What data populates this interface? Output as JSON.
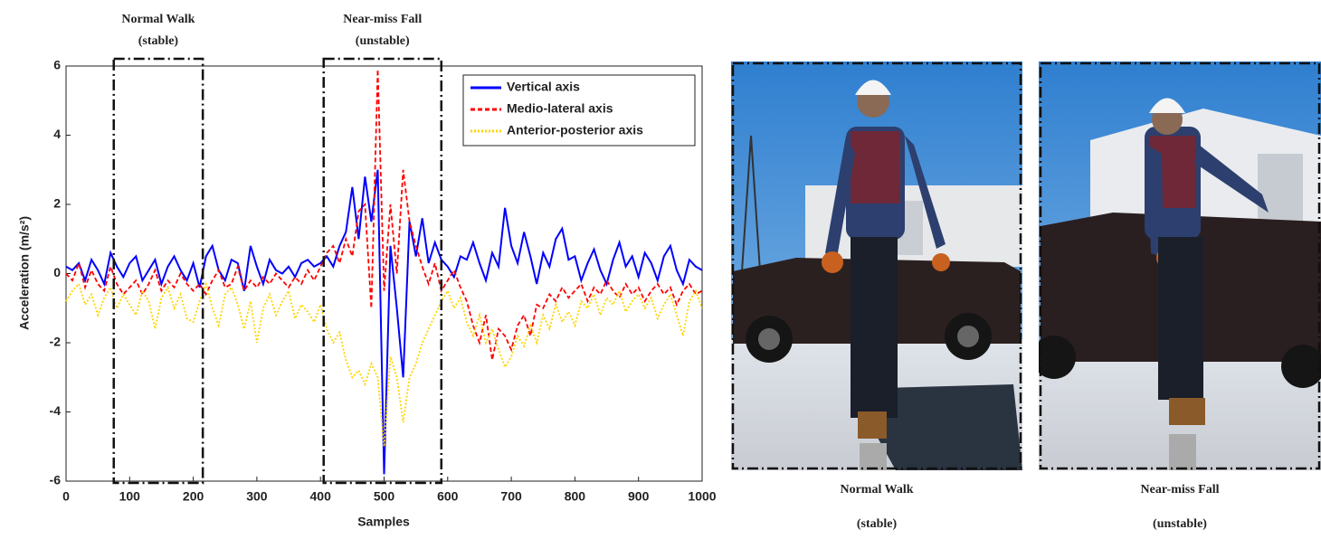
{
  "chart_data": {
    "type": "line",
    "xlabel": "Samples",
    "ylabel": "Acceleration (m/s²)",
    "x": [
      0,
      10,
      20,
      30,
      40,
      50,
      60,
      70,
      80,
      90,
      100,
      110,
      120,
      130,
      140,
      150,
      160,
      170,
      180,
      190,
      200,
      210,
      220,
      230,
      240,
      250,
      260,
      270,
      280,
      290,
      300,
      310,
      320,
      330,
      340,
      350,
      360,
      370,
      380,
      390,
      400,
      410,
      420,
      430,
      440,
      450,
      460,
      470,
      480,
      490,
      500,
      510,
      520,
      530,
      540,
      550,
      560,
      570,
      580,
      590,
      600,
      610,
      620,
      630,
      640,
      650,
      660,
      670,
      680,
      690,
      700,
      710,
      720,
      730,
      740,
      750,
      760,
      770,
      780,
      790,
      800,
      810,
      820,
      830,
      840,
      850,
      860,
      870,
      880,
      890,
      900,
      910,
      920,
      930,
      940,
      950,
      960,
      970,
      980,
      990,
      1000
    ],
    "series": [
      {
        "name": "Vertical axis",
        "color": "#0000ff",
        "dash": "solid",
        "values": [
          0.2,
          0.1,
          0.3,
          -0.2,
          0.4,
          0.1,
          -0.3,
          0.6,
          0.2,
          -0.1,
          0.3,
          0.5,
          -0.2,
          0.1,
          0.4,
          -0.3,
          0.2,
          0.5,
          0.1,
          -0.2,
          0.3,
          -0.4,
          0.5,
          0.8,
          0.1,
          -0.2,
          0.4,
          0.3,
          -0.5,
          0.8,
          0.2,
          -0.3,
          0.4,
          0.1,
          0.0,
          0.2,
          -0.1,
          0.3,
          0.4,
          0.2,
          0.3,
          0.5,
          0.2,
          0.8,
          1.2,
          2.5,
          1.0,
          2.8,
          1.5,
          3.0,
          -5.8,
          0.8,
          -1.0,
          -3.0,
          1.5,
          0.5,
          1.6,
          0.3,
          0.9,
          0.4,
          0.2,
          -0.1,
          0.5,
          0.4,
          0.9,
          0.3,
          -0.2,
          0.6,
          0.2,
          1.9,
          0.8,
          0.3,
          1.2,
          0.5,
          -0.3,
          0.6,
          0.2,
          1.0,
          1.3,
          0.4,
          0.5,
          -0.2,
          0.3,
          0.7,
          0.1,
          -0.3,
          0.4,
          0.9,
          0.2,
          0.5,
          -0.1,
          0.6,
          0.3,
          -0.2,
          0.5,
          0.8,
          0.1,
          -0.3,
          0.4,
          0.2,
          0.1
        ]
      },
      {
        "name": "Medio-lateral axis",
        "color": "#ff0000",
        "dash": "dashed",
        "values": [
          0.0,
          -0.2,
          0.3,
          -0.4,
          0.1,
          -0.3,
          -0.5,
          0.2,
          -0.3,
          -0.6,
          -0.4,
          -0.2,
          -0.6,
          -0.3,
          0.1,
          -0.5,
          -0.2,
          -0.4,
          0.0,
          -0.3,
          -0.5,
          -0.3,
          -0.6,
          -0.2,
          0.1,
          -0.4,
          -0.3,
          0.2,
          -0.5,
          -0.2,
          -0.4,
          -0.1,
          -0.3,
          0.0,
          -0.2,
          -0.4,
          -0.1,
          -0.3,
          0.1,
          -0.2,
          0.2,
          0.6,
          0.8,
          0.3,
          1.0,
          0.5,
          1.8,
          2.0,
          -1.0,
          5.9,
          -0.5,
          2.0,
          0.0,
          3.0,
          1.5,
          0.8,
          0.2,
          -0.3,
          0.3,
          -0.5,
          -0.2,
          0.1,
          -0.4,
          -0.8,
          -1.5,
          -2.0,
          -1.2,
          -2.5,
          -1.6,
          -1.8,
          -2.2,
          -1.5,
          -1.2,
          -1.8,
          -0.9,
          -1.0,
          -0.6,
          -0.8,
          -0.4,
          -0.7,
          -0.5,
          -0.3,
          -0.8,
          -0.4,
          -0.6,
          -0.2,
          -0.5,
          -0.7,
          -0.3,
          -0.6,
          -0.4,
          -0.8,
          -0.5,
          -0.3,
          -0.6,
          -0.4,
          -0.9,
          -0.5,
          -0.3,
          -0.6,
          -0.5
        ]
      },
      {
        "name": "Anterior-posterior axis",
        "color": "#ffd400",
        "dash": "dotted",
        "values": [
          -0.8,
          -0.5,
          -0.3,
          -0.9,
          -0.6,
          -1.2,
          -0.7,
          -0.4,
          -1.0,
          -0.6,
          -0.9,
          -1.2,
          -0.5,
          -0.8,
          -1.6,
          -0.7,
          -0.4,
          -1.0,
          -0.6,
          -1.3,
          -1.4,
          -0.8,
          -0.3,
          -1.0,
          -1.5,
          -0.6,
          -0.4,
          -0.9,
          -1.6,
          -0.8,
          -2.0,
          -1.0,
          -0.6,
          -1.2,
          -0.8,
          -0.5,
          -1.3,
          -0.9,
          -1.1,
          -1.4,
          -0.9,
          -1.6,
          -2.0,
          -1.7,
          -2.5,
          -3.0,
          -2.8,
          -3.2,
          -2.6,
          -3.0,
          -5.0,
          -2.4,
          -3.0,
          -4.3,
          -3.0,
          -2.6,
          -2.0,
          -1.6,
          -1.2,
          -0.8,
          -0.5,
          -1.0,
          -0.7,
          -1.4,
          -1.8,
          -1.2,
          -2.0,
          -1.6,
          -2.2,
          -2.7,
          -2.4,
          -1.8,
          -2.1,
          -1.5,
          -2.0,
          -1.2,
          -1.6,
          -0.9,
          -1.4,
          -1.1,
          -1.5,
          -0.8,
          -1.0,
          -0.6,
          -1.2,
          -0.7,
          -0.9,
          -0.5,
          -1.1,
          -0.8,
          -0.6,
          -1.0,
          -0.7,
          -1.3,
          -0.9,
          -0.6,
          -1.2,
          -1.8,
          -0.8,
          -0.5,
          -1.0
        ]
      }
    ],
    "xlim": [
      0,
      1000
    ],
    "xticks": [
      0,
      100,
      200,
      300,
      400,
      500,
      600,
      700,
      800,
      900,
      1000
    ],
    "ylim": [
      -6,
      6
    ],
    "yticks": [
      -6,
      -4,
      -2,
      0,
      2,
      4,
      6
    ],
    "grid": false,
    "legend": "upper right",
    "annotations": [
      {
        "text": [
          "Normal Walk",
          "(stable)"
        ],
        "x": [
          75,
          215
        ]
      },
      {
        "text": [
          "Near-miss Fall",
          "(unstable)"
        ],
        "x": [
          405,
          590
        ]
      }
    ]
  },
  "images": [
    {
      "caption": [
        "Normal Walk",
        "(stable)"
      ]
    },
    {
      "caption": [
        "Near-miss Fall",
        "(unstable)"
      ]
    }
  ]
}
